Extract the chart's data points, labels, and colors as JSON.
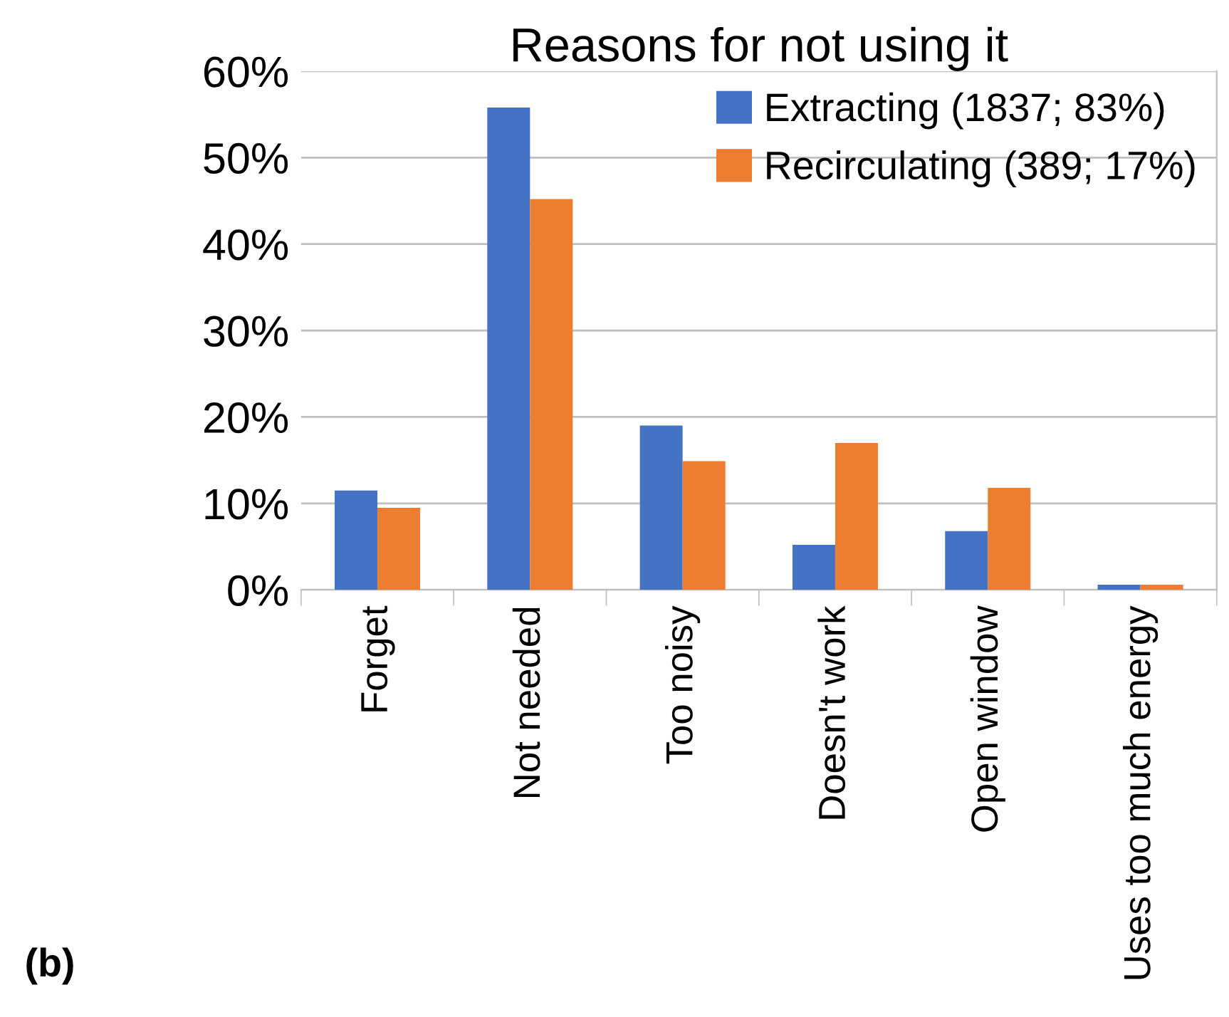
{
  "chart_data": {
    "type": "bar",
    "title": "Reasons for not using it",
    "categories": [
      "Forget",
      "Not needed",
      "Too noisy",
      "Doesn't work",
      "Open window",
      "Uses too much energy"
    ],
    "series": [
      {
        "name": "Extracting (1837; 83%)",
        "color": "#4472c4",
        "values": [
          11.5,
          55.8,
          19.0,
          5.2,
          6.8,
          0.6
        ]
      },
      {
        "name": "Recirculating (389; 17%)",
        "color": "#ed7d31",
        "values": [
          9.5,
          45.2,
          14.9,
          17.0,
          11.8,
          0.6
        ]
      }
    ],
    "ylim": [
      0,
      60
    ],
    "yticks": [
      {
        "value": 0,
        "label": "0%"
      },
      {
        "value": 10,
        "label": "10%"
      },
      {
        "value": 20,
        "label": "20%"
      },
      {
        "value": 30,
        "label": "30%"
      },
      {
        "value": 40,
        "label": "40%"
      },
      {
        "value": 50,
        "label": "50%"
      },
      {
        "value": 60,
        "label": "60%"
      }
    ],
    "grid": "y",
    "legend": "top right",
    "annotations": [
      "(b)"
    ]
  }
}
